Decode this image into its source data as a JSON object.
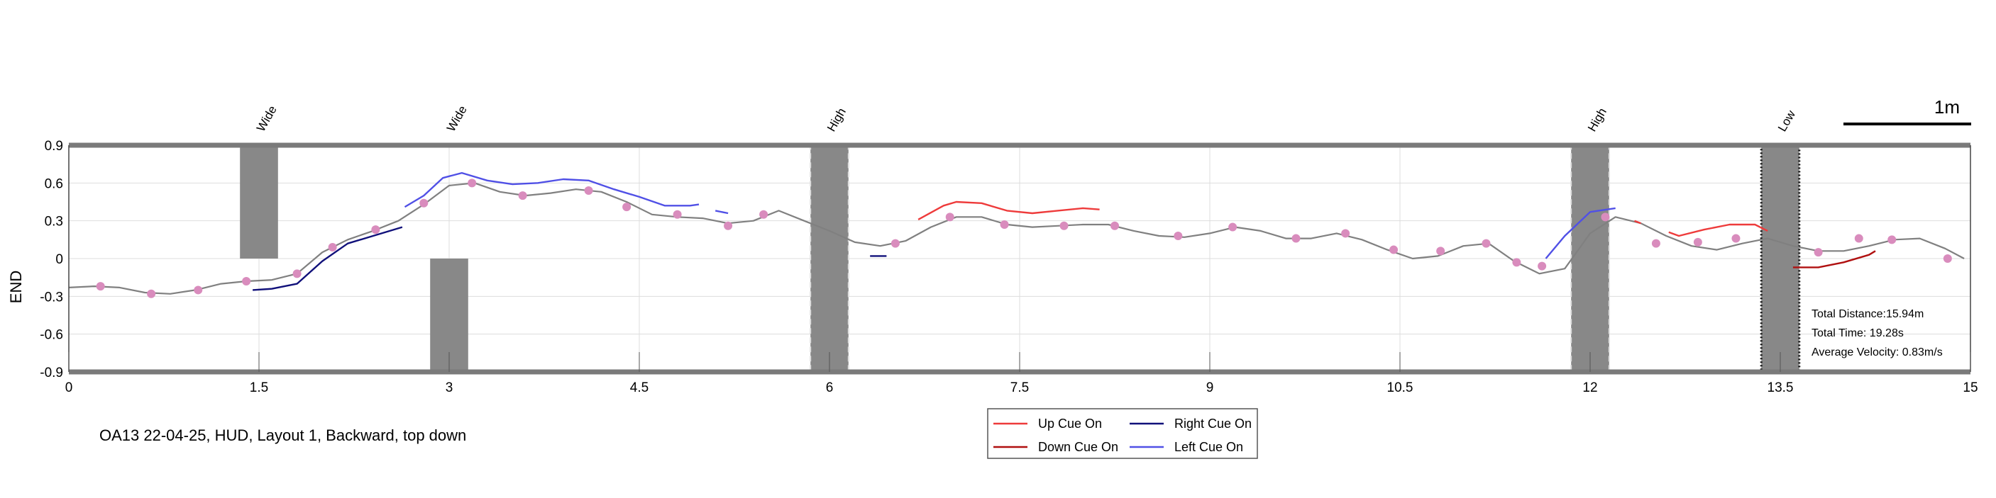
{
  "chart_data": {
    "type": "line",
    "title": "",
    "caption": "OA13 22-04-25, HUD, Layout 1, Backward, top down",
    "xlabel": "",
    "ylabel": "END",
    "xlim": [
      0,
      15
    ],
    "ylim": [
      -0.9,
      0.9
    ],
    "xticks": [
      0,
      1.5,
      3,
      4.5,
      6,
      7.5,
      9,
      10.5,
      12,
      13.5,
      15
    ],
    "xtick_labels": [
      "0",
      "1.5",
      "3",
      "4.5",
      "6",
      "7.5",
      "9",
      "10.5",
      "12",
      "13.5",
      "15"
    ],
    "yticks": [
      0.9,
      0.6,
      0.3,
      0,
      -0.3,
      -0.6,
      -0.9
    ],
    "ytick_labels": [
      "0.9",
      "0.6",
      "0.3",
      "0",
      "-0.3",
      "-0.6",
      "-0.9"
    ],
    "grid": true,
    "scale_bar_label": "1m",
    "colors": {
      "trajectory": "#808080",
      "markers": "#d98cbd",
      "up_cue": "#ee3b3b",
      "down_cue": "#b01010",
      "right_cue": "#10107a",
      "left_cue": "#5050e6",
      "obstacle": "#888888"
    },
    "obstacles": [
      {
        "label": "Wide",
        "x": [
          1.35,
          1.65
        ],
        "y": [
          0,
          0.9
        ],
        "style": "solid"
      },
      {
        "label": "Wide",
        "x": [
          2.85,
          3.15
        ],
        "y": [
          -0.9,
          0
        ],
        "style": "solid"
      },
      {
        "label": "High",
        "x": [
          5.85,
          6.15
        ],
        "y": [
          -0.9,
          0.9
        ],
        "style": "dashed"
      },
      {
        "label": "High",
        "x": [
          11.85,
          12.15
        ],
        "y": [
          -0.9,
          0.9
        ],
        "style": "dashed"
      },
      {
        "label": "Low",
        "x": [
          13.35,
          13.65
        ],
        "y": [
          -0.9,
          0.9
        ],
        "style": "dotted"
      }
    ],
    "stats": [
      "Total Distance:15.94m",
      "Total Time: 19.28s",
      "Average Velocity: 0.83m/s"
    ],
    "legend": {
      "placement": "bottom-center",
      "entries": [
        {
          "label": "Up Cue On",
          "color": "#ee3b3b"
        },
        {
          "label": "Right Cue On",
          "color": "#10107a"
        },
        {
          "label": "Down Cue On",
          "color": "#b01010"
        },
        {
          "label": "Left Cue On",
          "color": "#5050e6"
        }
      ]
    },
    "series": [
      {
        "role": "trajectory",
        "x": [
          0,
          0.2,
          0.4,
          0.6,
          0.8,
          1.0,
          1.2,
          1.4,
          1.6,
          1.8,
          2.0,
          2.2,
          2.4,
          2.6,
          2.8,
          3.0,
          3.2,
          3.4,
          3.6,
          3.8,
          4.0,
          4.2,
          4.4,
          4.6,
          4.8,
          5.0,
          5.2,
          5.4,
          5.6,
          5.8,
          6.0,
          6.2,
          6.4,
          6.6,
          6.8,
          7.0,
          7.2,
          7.4,
          7.6,
          7.8,
          8.0,
          8.2,
          8.4,
          8.6,
          8.8,
          9.0,
          9.2,
          9.4,
          9.6,
          9.8,
          10.0,
          10.2,
          10.4,
          10.6,
          10.8,
          11.0,
          11.2,
          11.4,
          11.6,
          11.8,
          12.0,
          12.2,
          12.4,
          12.6,
          12.8,
          13.0,
          13.2,
          13.4,
          13.6,
          13.8,
          14.0,
          14.2,
          14.4,
          14.6,
          14.8,
          14.95
        ],
        "y": [
          -0.23,
          -0.22,
          -0.23,
          -0.27,
          -0.28,
          -0.25,
          -0.2,
          -0.18,
          -0.17,
          -0.12,
          0.05,
          0.15,
          0.22,
          0.3,
          0.43,
          0.58,
          0.6,
          0.53,
          0.5,
          0.52,
          0.55,
          0.53,
          0.45,
          0.35,
          0.33,
          0.32,
          0.28,
          0.3,
          0.38,
          0.3,
          0.22,
          0.13,
          0.1,
          0.14,
          0.25,
          0.33,
          0.33,
          0.27,
          0.25,
          0.26,
          0.27,
          0.27,
          0.22,
          0.18,
          0.17,
          0.2,
          0.25,
          0.22,
          0.16,
          0.16,
          0.2,
          0.15,
          0.07,
          0.0,
          0.02,
          0.1,
          0.12,
          -0.02,
          -0.12,
          -0.08,
          0.2,
          0.33,
          0.28,
          0.18,
          0.1,
          0.07,
          0.12,
          0.16,
          0.1,
          0.06,
          0.06,
          0.1,
          0.15,
          0.16,
          0.08,
          0.0
        ]
      },
      {
        "role": "marker",
        "x": [
          0.25,
          0.65,
          1.02,
          1.4,
          1.8,
          2.08,
          2.42,
          2.8,
          3.18,
          3.58,
          4.1,
          4.4,
          4.8,
          5.2,
          5.48,
          6.52,
          6.95,
          7.38,
          7.85,
          8.25,
          8.75,
          9.18,
          9.68,
          10.07,
          10.45,
          10.82,
          11.18,
          11.42,
          11.62,
          12.12,
          12.52,
          12.85,
          13.15,
          13.8,
          14.12,
          14.38,
          14.82
        ],
        "y": [
          -0.22,
          -0.28,
          -0.25,
          -0.18,
          -0.12,
          0.09,
          0.23,
          0.44,
          0.6,
          0.5,
          0.54,
          0.41,
          0.35,
          0.26,
          0.35,
          0.12,
          0.33,
          0.27,
          0.26,
          0.26,
          0.18,
          0.25,
          0.16,
          0.2,
          0.07,
          0.06,
          0.12,
          -0.03,
          -0.06,
          0.33,
          0.12,
          0.13,
          0.16,
          0.05,
          0.16,
          0.15,
          0.0
        ]
      },
      {
        "role": "up_cue",
        "segments": [
          {
            "x": [
              6.7,
              6.9,
              7.0,
              7.2,
              7.4,
              7.6,
              7.8,
              8.0,
              8.13
            ],
            "y": [
              0.31,
              0.42,
              0.45,
              0.44,
              0.38,
              0.36,
              0.38,
              0.4,
              0.39
            ]
          },
          {
            "x": [
              12.35,
              12.4
            ],
            "y": [
              0.3,
              0.28
            ]
          },
          {
            "x": [
              12.62,
              12.7,
              12.9,
              13.1,
              13.3,
              13.4
            ],
            "y": [
              0.21,
              0.18,
              0.23,
              0.27,
              0.27,
              0.22
            ]
          }
        ]
      },
      {
        "role": "down_cue",
        "segments": [
          {
            "x": [
              13.6,
              13.8,
              14.0,
              14.2,
              14.25
            ],
            "y": [
              -0.07,
              -0.07,
              -0.03,
              0.03,
              0.06
            ]
          }
        ]
      },
      {
        "role": "right_cue",
        "segments": [
          {
            "x": [
              1.45,
              1.6,
              1.8,
              2.0,
              2.2,
              2.4,
              2.63
            ],
            "y": [
              -0.25,
              -0.24,
              -0.2,
              -0.02,
              0.12,
              0.18,
              0.25
            ]
          },
          {
            "x": [
              6.32,
              6.45
            ],
            "y": [
              0.02,
              0.02
            ]
          }
        ]
      },
      {
        "role": "left_cue",
        "segments": [
          {
            "x": [
              2.65,
              2.8,
              2.95,
              3.1,
              3.3,
              3.5,
              3.7,
              3.9,
              4.1,
              4.3,
              4.5,
              4.7,
              4.9,
              4.97
            ],
            "y": [
              0.41,
              0.5,
              0.64,
              0.68,
              0.62,
              0.59,
              0.6,
              0.63,
              0.62,
              0.55,
              0.49,
              0.42,
              0.42,
              0.43
            ]
          },
          {
            "x": [
              5.1,
              5.2
            ],
            "y": [
              0.38,
              0.36
            ]
          },
          {
            "x": [
              11.65,
              11.8,
              12.0,
              12.2
            ],
            "y": [
              0.0,
              0.18,
              0.37,
              0.4
            ]
          }
        ]
      }
    ]
  }
}
